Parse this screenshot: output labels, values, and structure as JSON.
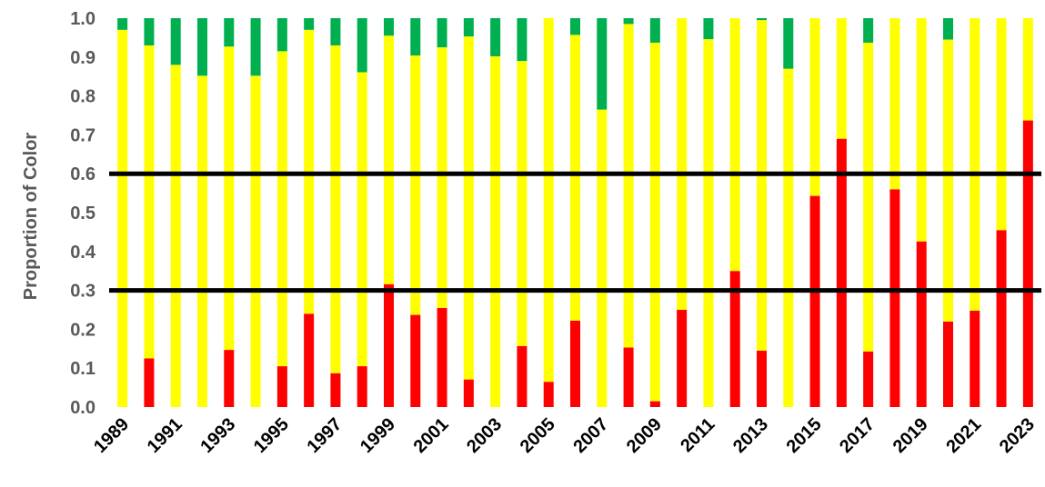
{
  "chart_data": {
    "type": "bar",
    "stacked": true,
    "ylabel": "Proportion of Color",
    "xlabel": "",
    "ylim": [
      0,
      1
    ],
    "yticks": [
      "0.0",
      "0.1",
      "0.2",
      "0.3",
      "0.4",
      "0.5",
      "0.6",
      "0.7",
      "0.8",
      "0.9",
      "1.0"
    ],
    "categories": [
      "1989",
      "1990",
      "1991",
      "1992",
      "1993",
      "1994",
      "1995",
      "1996",
      "1997",
      "1998",
      "1999",
      "2000",
      "2001",
      "2002",
      "2003",
      "2004",
      "2005",
      "2006",
      "2007",
      "2008",
      "2009",
      "2010",
      "2011",
      "2012",
      "2013",
      "2014",
      "2015",
      "2016",
      "2017",
      "2018",
      "2019",
      "2020",
      "2021",
      "2022",
      "2023"
    ],
    "xtick_labels": [
      "1989",
      "1991",
      "1993",
      "1995",
      "1997",
      "1999",
      "2001",
      "2003",
      "2005",
      "2007",
      "2009",
      "2011",
      "2013",
      "2015",
      "2017",
      "2019",
      "2021",
      "2023"
    ],
    "series": [
      {
        "color": "#ff0000",
        "values": [
          0.0,
          0.125,
          0.0,
          0.0,
          0.147,
          0.0,
          0.105,
          0.24,
          0.087,
          0.105,
          0.316,
          0.237,
          0.255,
          0.071,
          0.0,
          0.157,
          0.065,
          0.222,
          0.0,
          0.153,
          0.015,
          0.25,
          0.0,
          0.35,
          0.145,
          0.0,
          0.543,
          0.69,
          0.143,
          0.56,
          0.426,
          0.22,
          0.248,
          0.455,
          0.737
        ]
      },
      {
        "color": "#ffff00",
        "values": [
          0.97,
          0.805,
          0.88,
          0.852,
          0.78,
          0.852,
          0.81,
          0.73,
          0.843,
          0.756,
          0.639,
          0.667,
          0.67,
          0.882,
          0.902,
          0.733,
          0.935,
          0.735,
          0.765,
          0.832,
          0.922,
          0.75,
          0.946,
          0.65,
          0.85,
          0.87,
          0.457,
          0.31,
          0.794,
          0.44,
          0.574,
          0.725,
          0.752,
          0.545,
          0.263
        ]
      },
      {
        "color": "#00b050",
        "values": [
          0.03,
          0.07,
          0.12,
          0.148,
          0.073,
          0.148,
          0.085,
          0.03,
          0.07,
          0.139,
          0.045,
          0.096,
          0.075,
          0.047,
          0.098,
          0.11,
          0.0,
          0.043,
          0.235,
          0.015,
          0.063,
          0.0,
          0.054,
          0.0,
          0.005,
          0.13,
          0.0,
          0.0,
          0.063,
          0.0,
          0.0,
          0.055,
          0.0,
          0.0,
          0.0
        ]
      }
    ],
    "reference_lines": [
      0.3,
      0.6
    ],
    "grid": false,
    "legend": "none"
  }
}
